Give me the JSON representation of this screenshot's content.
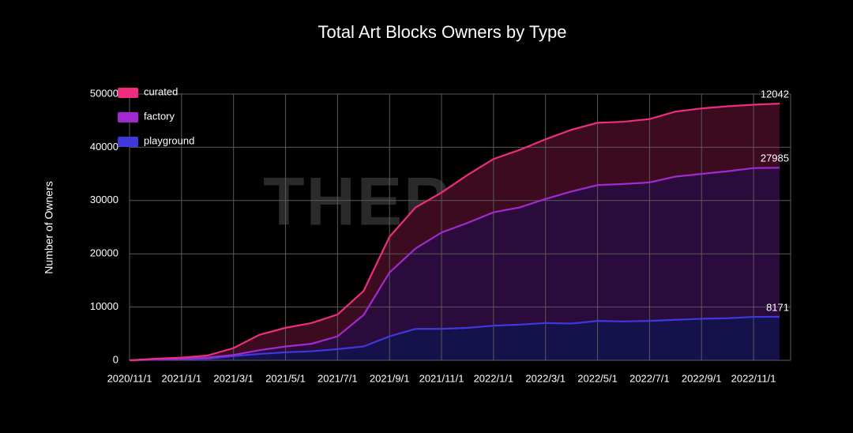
{
  "chart_data": {
    "type": "stacked-area",
    "title": "Total Art Blocks Owners by Type",
    "y_label": "Number of Owners",
    "watermark": "THEPASS",
    "categories": [
      "2020/11/1",
      null,
      "2021/1/1",
      null,
      "2021/3/1",
      null,
      "2021/5/1",
      null,
      "2021/7/1",
      null,
      "2021/9/1",
      null,
      "2021/11/1",
      null,
      "2022/1/1",
      null,
      "2022/3/1",
      null,
      "2022/5/1",
      null,
      "2022/7/1",
      null,
      "2022/9/1",
      null,
      "2022/11/1",
      null
    ],
    "ylim": [
      0,
      50000
    ],
    "yticks": [
      0,
      10000,
      20000,
      30000,
      40000,
      50000
    ],
    "grid": true,
    "legend": "top-left",
    "series": [
      {
        "name": "playground",
        "color": "#3f38dc",
        "fill": "#15114a",
        "values": [
          0,
          100,
          200,
          300,
          800,
          1200,
          1500,
          1700,
          2100,
          2600,
          4500,
          5900,
          5900,
          6100,
          6500,
          6700,
          7000,
          6900,
          7400,
          7300,
          7400,
          7600,
          7800,
          7900,
          8150,
          8171
        ]
      },
      {
        "name": "factory",
        "color": "#a02ad0",
        "fill": "#2b0b3c",
        "values": [
          0,
          100,
          100,
          200,
          200,
          700,
          1100,
          1400,
          2400,
          5900,
          12000,
          15100,
          18100,
          19700,
          21300,
          22000,
          23300,
          24800,
          25500,
          25800,
          26000,
          26900,
          27200,
          27600,
          27950,
          27985
        ]
      },
      {
        "name": "curated",
        "color": "#ee2d80",
        "fill": "#3c0b1f",
        "values": [
          0,
          100,
          200,
          400,
          1300,
          2900,
          3500,
          3900,
          4100,
          4500,
          6700,
          7700,
          7500,
          9000,
          10000,
          10800,
          11200,
          11600,
          11700,
          11700,
          11900,
          12200,
          12300,
          12200,
          11900,
          12042
        ]
      }
    ]
  }
}
